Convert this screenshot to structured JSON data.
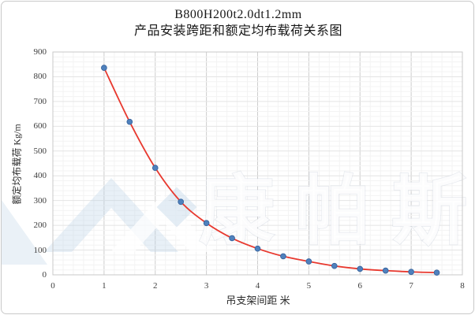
{
  "title": {
    "line1": "B800H200t2.0dt1.2mm",
    "line2": "产品安装跨距和额定均布载荷关系图"
  },
  "watermark": {
    "text": "康帕斯",
    "logo": "mountain-diamond-logo",
    "text_color": "#ffffff",
    "logo_color": "#b9d0e6"
  },
  "axes": {
    "x_title": "吊支架间距  米",
    "y_title": "额定均布载荷 Kg/m"
  },
  "colors": {
    "line": "#e8392f",
    "marker_fill": "#4f81bd",
    "marker_edge": "#38649e",
    "grid_major_v": "#cdcdcd",
    "grid_major_h": "#e4e4e4",
    "grid_minor": "#f3f3f3",
    "plot_border": "#c8c8c8",
    "text": "#2b2b2b"
  },
  "chart_data": {
    "type": "scatter",
    "title": "B800H200t2.0dt1.2mm 产品安装跨距和额定均布载荷关系图",
    "xlabel": "吊支架间距  米",
    "ylabel": "额定均布载荷 Kg/m",
    "x": [
      1,
      1.5,
      2,
      2.5,
      3,
      3.5,
      4,
      4.5,
      5,
      5.5,
      6,
      6.5,
      7,
      7.5
    ],
    "y": [
      836,
      618,
      432,
      295,
      209,
      148,
      106,
      75,
      54,
      36,
      24,
      17,
      12,
      9
    ],
    "xlim": [
      0,
      8
    ],
    "ylim": [
      0,
      900
    ],
    "x_major": 1,
    "x_minor": 0.2,
    "y_major": 100,
    "y_minor": 20,
    "x_tick_labels": [
      "0",
      "1",
      "2",
      "3",
      "4",
      "5",
      "6",
      "7",
      "8"
    ],
    "y_tick_labels": [
      "0",
      "100",
      "200",
      "300",
      "400",
      "500",
      "600",
      "700",
      "800",
      "900"
    ],
    "grid": "major+minor",
    "legend": "none",
    "line_style": "smooth",
    "marker": "circle"
  }
}
